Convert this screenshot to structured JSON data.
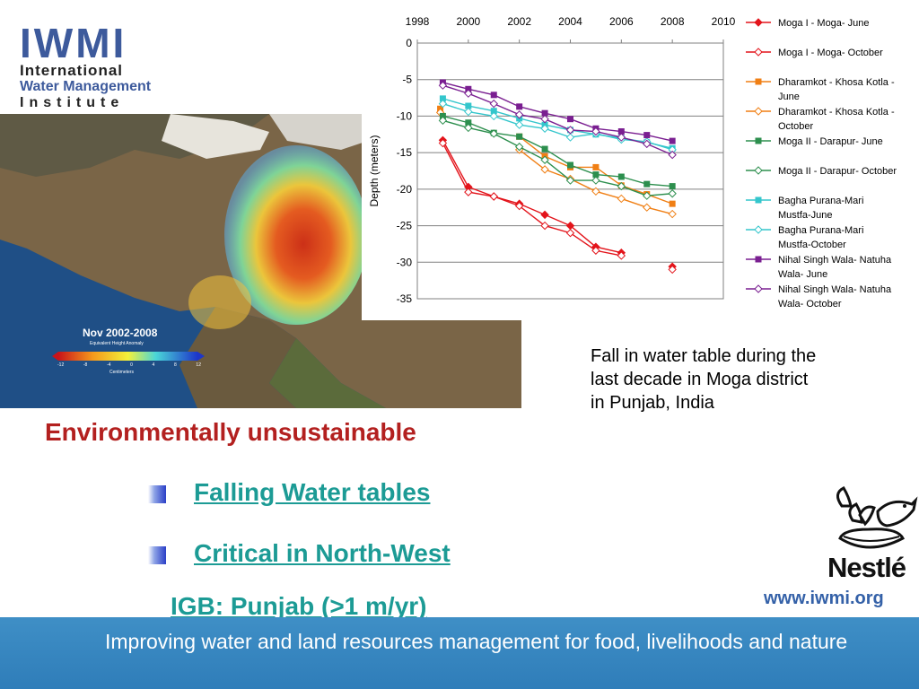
{
  "logo": {
    "letters": [
      "I",
      "W",
      "M",
      "I"
    ],
    "line1": "International",
    "line2": "Water Management",
    "line3": "Institute"
  },
  "map": {
    "legend_title": "Nov 2002-2008",
    "legend_subtitle": "Equivalent Height Anomaly",
    "legend_ticks": [
      "-12",
      "-8",
      "-4",
      "0",
      "4",
      "8",
      "12"
    ],
    "legend_units": "Centimeters"
  },
  "chart_data": {
    "type": "line",
    "title": "",
    "xlabel": "",
    "ylabel": "Depth (meters)",
    "xlim": [
      1998,
      2010
    ],
    "ylim": [
      -35,
      0
    ],
    "x_ticks": [
      1998,
      2000,
      2002,
      2004,
      2006,
      2008,
      2010
    ],
    "y_ticks": [
      0,
      -5,
      -10,
      -15,
      -20,
      -25,
      -30,
      -35
    ],
    "x_axis_position": "top",
    "grid": "horizontal",
    "legend_position": "right",
    "series": [
      {
        "name": "Moga I - Moga- June",
        "color": "#e3141b",
        "marker": "diamond",
        "fill": "filled",
        "points": [
          [
            1999,
            -13.3
          ],
          [
            2000,
            -19.7
          ],
          [
            2001,
            -21.0
          ],
          [
            2002,
            -22.0
          ],
          [
            2003,
            -23.5
          ],
          [
            2004,
            -25.0
          ],
          [
            2005,
            -27.9
          ],
          [
            2006,
            -28.7
          ],
          [
            2008,
            -30.6
          ]
        ]
      },
      {
        "name": "Moga I - Moga- October",
        "color": "#e3141b",
        "marker": "diamond",
        "fill": "hollow",
        "points": [
          [
            1999,
            -13.7
          ],
          [
            2000,
            -20.4
          ],
          [
            2001,
            -21.0
          ],
          [
            2002,
            -22.3
          ],
          [
            2003,
            -25.0
          ],
          [
            2004,
            -26.0
          ],
          [
            2005,
            -28.4
          ],
          [
            2006,
            -29.1
          ],
          [
            2008,
            -31.0
          ]
        ]
      },
      {
        "name": "Dharamkot - Khosa Kotla - June",
        "color": "#f07f14",
        "marker": "square",
        "fill": "filled",
        "points": [
          [
            1998.9,
            -9.0
          ],
          [
            2002,
            -12.8
          ],
          [
            2003,
            -15.5
          ],
          [
            2004,
            -17.0
          ],
          [
            2005,
            -17.0
          ],
          [
            2006,
            -19.5
          ],
          [
            2007,
            -20.7
          ],
          [
            2008,
            -22.0
          ]
        ]
      },
      {
        "name": "Dharamkot - Khosa Kotla - October",
        "color": "#f07f14",
        "marker": "diamond",
        "fill": "hollow",
        "points": [
          [
            1998.9,
            -9.5
          ],
          [
            2002,
            -14.6
          ],
          [
            2003,
            -17.3
          ],
          [
            2004,
            -18.6
          ],
          [
            2005,
            -20.3
          ],
          [
            2006,
            -21.3
          ],
          [
            2007,
            -22.5
          ],
          [
            2008,
            -23.4
          ]
        ]
      },
      {
        "name": "Moga II - Darapur- June",
        "color": "#2d8f4e",
        "marker": "square",
        "fill": "filled",
        "points": [
          [
            1999,
            -10.0
          ],
          [
            2000,
            -10.9
          ],
          [
            2001,
            -12.3
          ],
          [
            2002,
            -12.8
          ],
          [
            2003,
            -14.5
          ],
          [
            2004,
            -16.7
          ],
          [
            2005,
            -18.0
          ],
          [
            2006,
            -18.3
          ],
          [
            2007,
            -19.3
          ],
          [
            2008,
            -19.6
          ]
        ]
      },
      {
        "name": "Moga II - Darapur- October",
        "color": "#2d8f4e",
        "marker": "diamond",
        "fill": "hollow",
        "points": [
          [
            1999,
            -10.6
          ],
          [
            2000,
            -11.6
          ],
          [
            2001,
            -12.4
          ],
          [
            2002,
            -14.2
          ],
          [
            2003,
            -16.0
          ],
          [
            2004,
            -18.8
          ],
          [
            2005,
            -18.8
          ],
          [
            2006,
            -19.6
          ],
          [
            2007,
            -20.9
          ],
          [
            2008,
            -20.6
          ]
        ]
      },
      {
        "name": "Bagha Purana-Mari Mustfa-June",
        "color": "#34c6cc",
        "marker": "square",
        "fill": "filled",
        "points": [
          [
            1999,
            -7.6
          ],
          [
            2000,
            -8.6
          ],
          [
            2001,
            -9.3
          ],
          [
            2002,
            -10.3
          ],
          [
            2003,
            -11.2
          ],
          [
            2004,
            -11.9
          ],
          [
            2005,
            -12.5
          ],
          [
            2006,
            -13.0
          ],
          [
            2007,
            -13.6
          ],
          [
            2008,
            -14.4
          ]
        ]
      },
      {
        "name": "Bagha Purana-Mari Mustfa-October",
        "color": "#34c6cc",
        "marker": "diamond",
        "fill": "hollow",
        "points": [
          [
            1999,
            -8.3
          ],
          [
            2000,
            -9.4
          ],
          [
            2001,
            -10.0
          ],
          [
            2002,
            -11.2
          ],
          [
            2003,
            -11.7
          ],
          [
            2004,
            -12.9
          ],
          [
            2005,
            -12.4
          ],
          [
            2006,
            -13.2
          ],
          [
            2007,
            -13.5
          ],
          [
            2008,
            -14.6
          ]
        ]
      },
      {
        "name": "Nihal Singh Wala- Natuha Wala- June",
        "color": "#7a1f91",
        "marker": "square",
        "fill": "filled",
        "points": [
          [
            1999,
            -5.4
          ],
          [
            2000,
            -6.3
          ],
          [
            2001,
            -7.1
          ],
          [
            2002,
            -8.7
          ],
          [
            2003,
            -9.6
          ],
          [
            2004,
            -10.4
          ],
          [
            2005,
            -11.7
          ],
          [
            2006,
            -12.1
          ],
          [
            2007,
            -12.6
          ],
          [
            2008,
            -13.4
          ]
        ]
      },
      {
        "name": "Nihal Singh Wala- Natuha Wala- October",
        "color": "#7a1f91",
        "marker": "diamond",
        "fill": "hollow",
        "points": [
          [
            1999,
            -5.8
          ],
          [
            2000,
            -6.9
          ],
          [
            2001,
            -8.3
          ],
          [
            2002,
            -9.8
          ],
          [
            2003,
            -10.4
          ],
          [
            2004,
            -11.9
          ],
          [
            2005,
            -12.1
          ],
          [
            2006,
            -12.9
          ],
          [
            2007,
            -13.8
          ],
          [
            2008,
            -15.3
          ]
        ]
      }
    ]
  },
  "caption": {
    "line1": "Fall in water table during the",
    "line2": "last decade in Moga district",
    "line3": "in Punjab, India"
  },
  "heading": "Environmentally unsustainable",
  "bullets": [
    {
      "label": "Falling Water tables"
    },
    {
      "label": "Critical in North-West"
    }
  ],
  "subtext": "IGB: Punjab (>1 m/yr)",
  "nestle": {
    "wordmark": "Nestlé"
  },
  "website": "www.iwmi.org",
  "footer": {
    "tagline": "Improving water and land resources management for food, livelihoods and nature"
  },
  "colors": {
    "heading": "#b3201f",
    "link": "#1c9b95",
    "footer": "#2f7db9",
    "logo_blue": "#3d5a9c",
    "website": "#3461a8"
  }
}
